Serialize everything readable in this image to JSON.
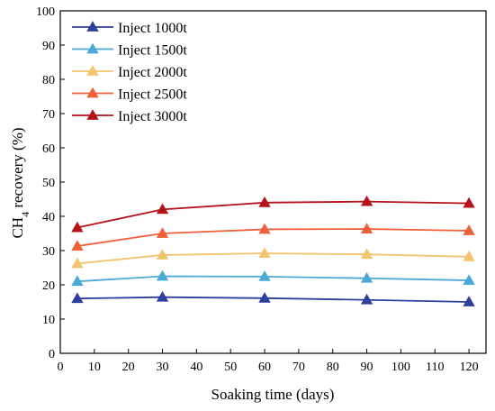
{
  "chart_data": {
    "type": "line",
    "title": "",
    "xlabel": "Soaking time (days)",
    "ylabel": {
      "main": "CH",
      "sub": "4",
      "rest": " recovery (%)"
    },
    "xlim": [
      0,
      125
    ],
    "ylim": [
      0,
      100
    ],
    "xticks": [
      0,
      10,
      20,
      30,
      40,
      50,
      60,
      70,
      80,
      90,
      100,
      110,
      120
    ],
    "yticks": [
      0,
      10,
      20,
      30,
      40,
      50,
      60,
      70,
      80,
      90,
      100
    ],
    "grid": false,
    "legend_position": "top-left",
    "x": [
      5,
      30,
      60,
      90,
      120
    ],
    "series": [
      {
        "name": "Inject 1000t",
        "color": "#2e3f9c",
        "values": [
          16.0,
          16.4,
          16.1,
          15.6,
          15.0
        ]
      },
      {
        "name": "Inject 1500t",
        "color": "#4aa9d6",
        "values": [
          21.0,
          22.5,
          22.4,
          21.9,
          21.3
        ]
      },
      {
        "name": "Inject 2000t",
        "color": "#f2c46e",
        "values": [
          26.2,
          28.7,
          29.2,
          28.9,
          28.2
        ]
      },
      {
        "name": "Inject 2500t",
        "color": "#f0603a",
        "values": [
          31.3,
          35.0,
          36.2,
          36.3,
          35.8
        ]
      },
      {
        "name": "Inject 3000t",
        "color": "#b5121b",
        "values": [
          36.7,
          42.0,
          44.0,
          44.3,
          43.8
        ]
      }
    ]
  }
}
